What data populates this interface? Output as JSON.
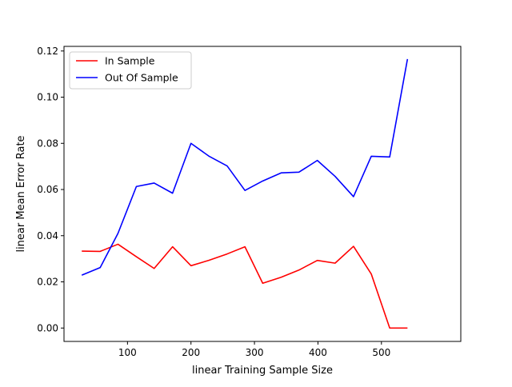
{
  "chart_data": {
    "type": "line",
    "title": "",
    "xlabel": "linear Training Sample Size",
    "ylabel": "linear Mean Error Rate",
    "xlim": [
      0,
      625
    ],
    "ylim": [
      -0.0058,
      0.122
    ],
    "xticks": [
      100,
      200,
      300,
      400,
      500
    ],
    "xtick_labels": [
      "100",
      "200",
      "300",
      "400",
      "500"
    ],
    "yticks": [
      0.0,
      0.02,
      0.04,
      0.06,
      0.08,
      0.1,
      0.12
    ],
    "ytick_labels": [
      "0.00",
      "0.02",
      "0.04",
      "0.06",
      "0.08",
      "0.10",
      "0.12"
    ],
    "grid": false,
    "legend_position": "top-left",
    "series": [
      {
        "name": "In Sample",
        "color": "#ff0000",
        "x": [
          28,
          57,
          85,
          114,
          142,
          171,
          200,
          228,
          257,
          285,
          313,
          342,
          370,
          399,
          427,
          456,
          484,
          513,
          541
        ],
        "y": [
          0.0333,
          0.0332,
          0.0363,
          0.0309,
          0.0258,
          0.0352,
          0.027,
          0.0293,
          0.0321,
          0.0352,
          0.0194,
          0.022,
          0.0251,
          0.0293,
          0.0281,
          0.0354,
          0.0234,
          0.0,
          0.0
        ]
      },
      {
        "name": "Out Of Sample",
        "color": "#0000ff",
        "x": [
          28,
          57,
          85,
          114,
          142,
          171,
          200,
          228,
          257,
          285,
          313,
          342,
          370,
          399,
          427,
          456,
          484,
          513,
          541
        ],
        "y": [
          0.0229,
          0.0262,
          0.041,
          0.0613,
          0.0628,
          0.0584,
          0.08,
          0.0745,
          0.0702,
          0.0596,
          0.0637,
          0.0672,
          0.0675,
          0.0726,
          0.0657,
          0.0569,
          0.0744,
          0.0741,
          0.1165
        ]
      }
    ]
  }
}
